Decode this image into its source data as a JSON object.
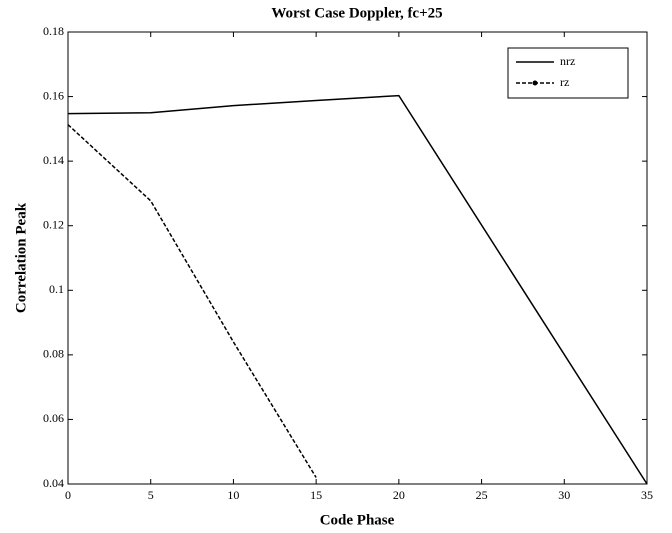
{
  "chart_data": {
    "type": "line",
    "title": "Worst Case Doppler, fc+25",
    "x_label": "Code Phase",
    "y_label": "Correlation Peak",
    "series": [
      {
        "name": "nrz",
        "color": "#000000",
        "dash": "solid",
        "marker": "none",
        "x": [
          0,
          5,
          10,
          15,
          20,
          35
        ],
        "values": [
          0.1547,
          0.155,
          0.1572,
          0.1588,
          0.1603,
          0.04
        ]
      },
      {
        "name": "rz",
        "color": "#000000",
        "dash": "dashed",
        "marker": "dot",
        "x": [
          0,
          5,
          10,
          15
        ],
        "values": [
          0.1513,
          0.1277,
          0.084,
          0.042
        ]
      }
    ],
    "xlim": [
      0,
      35
    ],
    "xticks": [
      0,
      5,
      10,
      15,
      20,
      25,
      30,
      35
    ],
    "ylim": [
      0.04,
      0.18
    ],
    "yticks": [
      0.04,
      0.06,
      0.08,
      0.1,
      0.12,
      0.14,
      0.16,
      0.18
    ],
    "grid": false,
    "legend": "upper right"
  }
}
